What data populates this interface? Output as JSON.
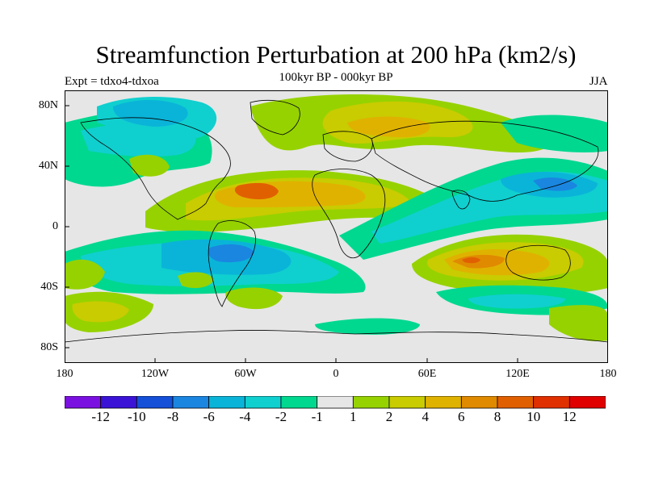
{
  "title": "Streamfunction Perturbation at 200 hPa (km2/s)",
  "left_subtitle": "Expt = tdxo4-tdxoa",
  "center_subtitle": "100kyr BP - 000kyr BP",
  "right_subtitle": "JJA",
  "lat_labels": [
    "80N",
    "40N",
    "0",
    "40S",
    "80S"
  ],
  "lon_labels": [
    "180",
    "120W",
    "60W",
    "0",
    "60E",
    "120E",
    "180"
  ],
  "colorbar": {
    "labels": [
      "-12",
      "-10",
      "-8",
      "-6",
      "-4",
      "-2",
      "-1",
      "1",
      "2",
      "4",
      "6",
      "8",
      "10",
      "12"
    ],
    "colors": [
      "#7b11e0",
      "#3a13d6",
      "#1450d8",
      "#1a86e0",
      "#0ab4d8",
      "#10cfcf",
      "#00d890",
      "#e6e6e6",
      "#96d200",
      "#c8cc00",
      "#e0b200",
      "#e08a00",
      "#e06000",
      "#e03000",
      "#e00000"
    ]
  }
}
